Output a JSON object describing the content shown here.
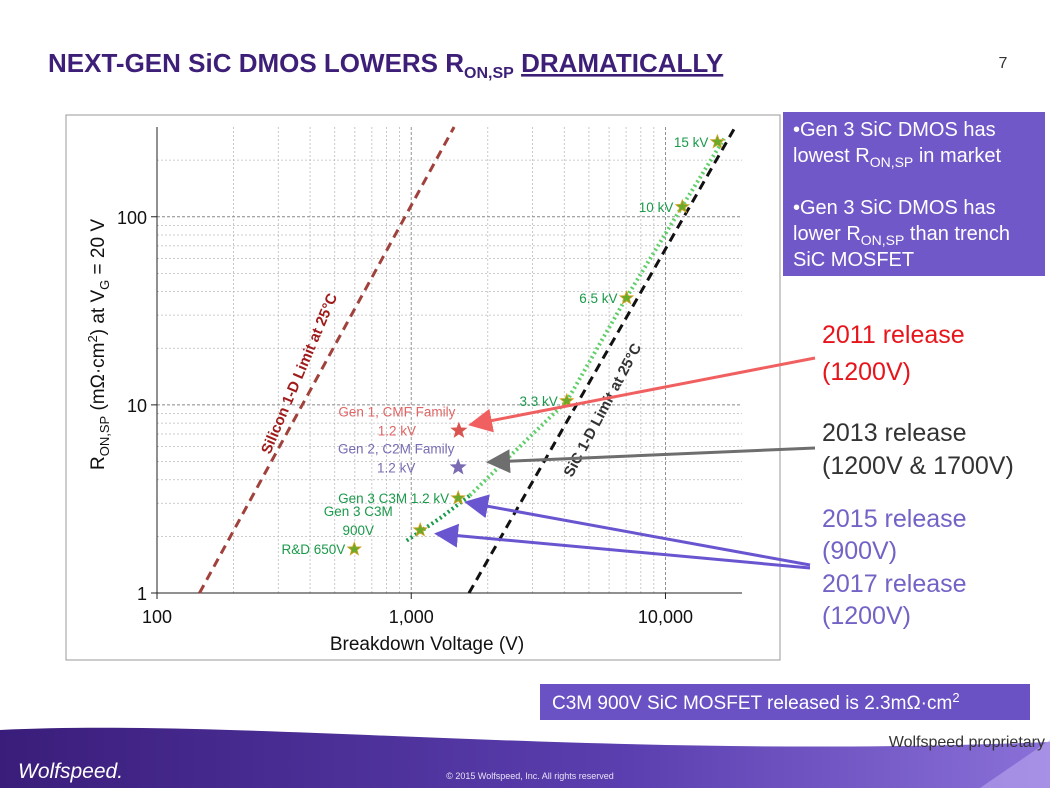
{
  "slide": {
    "title": [
      "NEXT-GEN SiC DMOS LOWERS R",
      "ON,SP",
      " ",
      "DRAMATICALLY"
    ],
    "page_number": "7",
    "bullets": [
      [
        [
          "•Gen 3 SiC DMOS has"
        ],
        [
          "lowest R",
          "ON,SP",
          " in market"
        ]
      ],
      [
        [
          "•Gen 3 SiC DMOS has"
        ],
        [
          "lower R",
          "ON,SP",
          " than trench"
        ],
        [
          "SiC MOSFET"
        ]
      ]
    ],
    "releases": [
      {
        "lines": [
          "2011 release",
          "(1200V)"
        ],
        "color": "#e8141b"
      },
      {
        "lines": [
          "2013 release",
          "(1200V & 1700V)"
        ],
        "color": "#333333"
      },
      {
        "lines": [
          "2015 release",
          "(900V)",
          "2017 release",
          "(1200V)"
        ],
        "color": "#7462c6"
      }
    ],
    "note": [
      "C3M 900V SiC MOSFET released is 2.3mΩ·cm",
      "2"
    ],
    "proprietary": "Wolfspeed proprietary",
    "copyright": "© 2015 Wolfspeed, Inc. All rights reserved",
    "logo": "Wolfspeed."
  },
  "chart_data": {
    "type": "scatter",
    "xlabel": "Breakdown Voltage (V)",
    "ylabel": [
      "R",
      "ON,SP",
      " (mΩ·cm",
      "2",
      ") at V",
      "G",
      " = 20 V"
    ],
    "xlog": true,
    "ylog": true,
    "grid": true,
    "xlim": [
      100,
      20000
    ],
    "ylim": [
      1,
      300
    ],
    "xticks": [
      100,
      {
        "value": 1000,
        "label": "1,000"
      },
      {
        "value": 10000,
        "label": "10,000"
      }
    ],
    "yticks": [
      1,
      10,
      100
    ],
    "xticks_minor": [
      200,
      300,
      400,
      500,
      600,
      700,
      800,
      900,
      2000,
      3000,
      4000,
      5000,
      6000,
      7000,
      8000,
      9000
    ],
    "yticks_minor": [
      2,
      3,
      4,
      5,
      6,
      7,
      8,
      9,
      20,
      30,
      40,
      50,
      60,
      70,
      80,
      90,
      200
    ],
    "annotations": [
      "Silicon 1-D Limit at 25°C",
      "SiC 1-D Limit at 25°C"
    ],
    "series": [
      {
        "x": [
          147,
          1475
        ],
        "values": [
          1,
          300
        ],
        "color": "#a0413c",
        "style": "dashed"
      },
      {
        "x": [
          1687,
          18800
        ],
        "values": [
          1,
          300
        ],
        "color": "#111111",
        "style": "dashed"
      },
      {
        "x": [
          960,
          1300,
          1700
        ],
        "values": [
          1.9,
          2.5,
          3.3
        ],
        "color": "#1a9a4a",
        "style": "dotted"
      },
      {
        "x": [
          1700,
          2500,
          4100,
          7000,
          11600,
          17000
        ],
        "values": [
          3.3,
          5.5,
          10.5,
          37,
          113,
          260
        ],
        "color": "#5fcf6a",
        "style": "dotted"
      }
    ],
    "points": {
      "x": [
        16000,
        11650,
        7030,
        4090,
        1530,
        1085,
        597,
        1540,
        1530
      ],
      "values": [
        250,
        113,
        37,
        10.5,
        3.2,
        2.16,
        1.71,
        7.3,
        4.66
      ],
      "labels": [
        [
          "15 kV"
        ],
        [
          "10 kV"
        ],
        [
          "6.5 kV"
        ],
        [
          "3.3 kV"
        ],
        [
          "Gen 3 C3M 1.2 kV"
        ],
        [
          "Gen 3 C3M",
          "900V"
        ],
        [
          "R&D 650V"
        ],
        [
          "Gen 1, CMF Family",
          "1.2 kV"
        ],
        [
          "Gen 2, C2M Family",
          "1.2 kV"
        ]
      ],
      "colors": [
        "#6aaa2a",
        "#6aaa2a",
        "#6aaa2a",
        "#6aaa2a",
        "#6aaa2a",
        "#6aaa2a",
        "#6aaa2a",
        "#d9534f",
        "#7a6bb3"
      ],
      "label_colors": [
        "#1a9a4a",
        "#1a9a4a",
        "#1a9a4a",
        "#1a9a4a",
        "#1a9a4a",
        "#1a9a4a",
        "#1a9a4a",
        "#e06666",
        "#7a6bb3"
      ]
    }
  }
}
